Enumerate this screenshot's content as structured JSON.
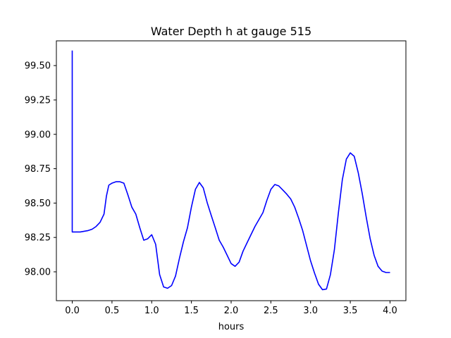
{
  "chart_data": {
    "type": "line",
    "title": "Water Depth h at gauge 515",
    "xlabel": "hours",
    "ylabel": "",
    "xlim": [
      -0.2,
      4.2
    ],
    "ylim": [
      97.79,
      99.68
    ],
    "xticks": [
      0.0,
      0.5,
      1.0,
      1.5,
      2.0,
      2.5,
      3.0,
      3.5,
      4.0
    ],
    "xtick_labels": [
      "0.0",
      "0.5",
      "1.0",
      "1.5",
      "2.0",
      "2.5",
      "3.0",
      "3.5",
      "4.0"
    ],
    "yticks": [
      98.0,
      98.25,
      98.5,
      98.75,
      99.0,
      99.25,
      99.5
    ],
    "ytick_labels": [
      "98.00",
      "98.25",
      "98.50",
      "98.75",
      "99.00",
      "99.25",
      "99.50"
    ],
    "grid": false,
    "series": [
      {
        "color": "#0000ff",
        "x": [
          0.0,
          0.0,
          0.005,
          0.1,
          0.2,
          0.25,
          0.3,
          0.35,
          0.4,
          0.43,
          0.46,
          0.5,
          0.55,
          0.6,
          0.65,
          0.7,
          0.75,
          0.8,
          0.85,
          0.9,
          0.95,
          1.0,
          1.05,
          1.1,
          1.15,
          1.2,
          1.25,
          1.3,
          1.35,
          1.4,
          1.45,
          1.5,
          1.55,
          1.6,
          1.65,
          1.7,
          1.75,
          1.8,
          1.85,
          1.9,
          1.95,
          2.0,
          2.05,
          2.1,
          2.15,
          2.2,
          2.3,
          2.4,
          2.45,
          2.5,
          2.55,
          2.6,
          2.65,
          2.7,
          2.75,
          2.8,
          2.85,
          2.9,
          2.95,
          3.0,
          3.05,
          3.1,
          3.15,
          3.2,
          3.25,
          3.3,
          3.35,
          3.4,
          3.45,
          3.5,
          3.55,
          3.6,
          3.65,
          3.7,
          3.75,
          3.8,
          3.85,
          3.9,
          3.95,
          4.0
        ],
        "y": [
          99.61,
          98.29,
          98.29,
          98.29,
          98.3,
          98.31,
          98.33,
          98.36,
          98.42,
          98.55,
          98.63,
          98.645,
          98.655,
          98.655,
          98.645,
          98.56,
          98.47,
          98.42,
          98.32,
          98.23,
          98.24,
          98.27,
          98.2,
          97.98,
          97.89,
          97.88,
          97.9,
          97.97,
          98.1,
          98.22,
          98.32,
          98.47,
          98.6,
          98.65,
          98.61,
          98.5,
          98.41,
          98.32,
          98.23,
          98.18,
          98.12,
          98.06,
          98.04,
          98.07,
          98.15,
          98.21,
          98.33,
          98.43,
          98.52,
          98.6,
          98.635,
          98.625,
          98.595,
          98.565,
          98.53,
          98.47,
          98.39,
          98.3,
          98.19,
          98.08,
          97.99,
          97.91,
          97.87,
          97.875,
          97.98,
          98.16,
          98.43,
          98.67,
          98.82,
          98.865,
          98.84,
          98.72,
          98.57,
          98.4,
          98.24,
          98.12,
          98.04,
          98.005,
          97.995,
          97.995
        ]
      }
    ]
  }
}
